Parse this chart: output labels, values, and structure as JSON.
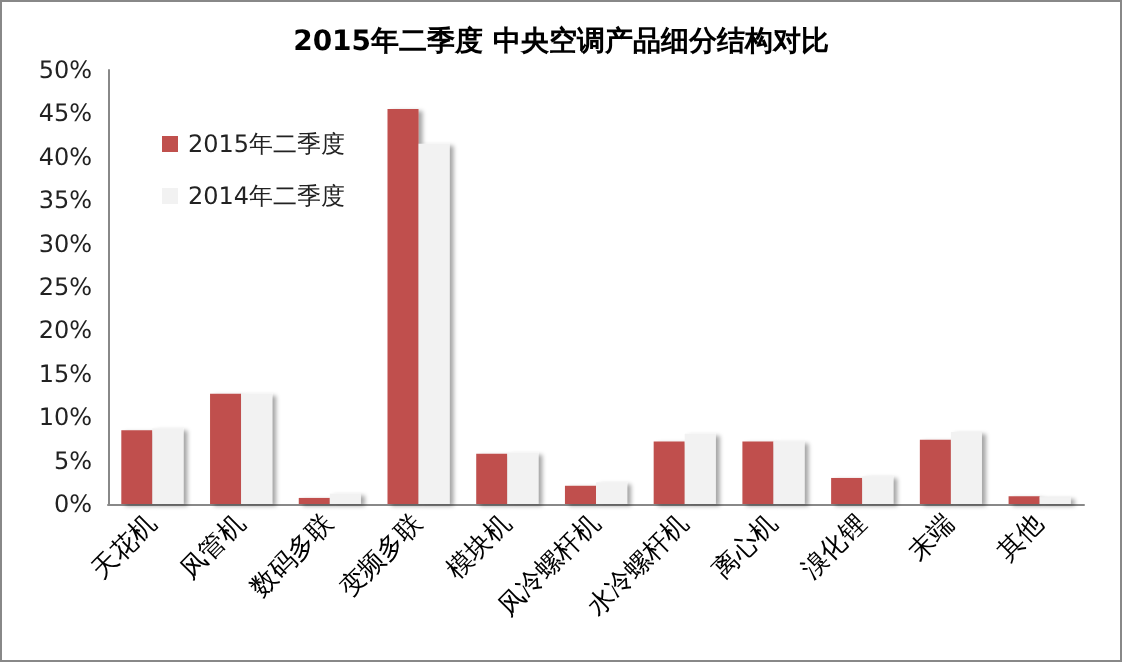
{
  "chart_data": {
    "type": "bar",
    "title": "2015年二季度 中央空调产品细分结构对比",
    "categories": [
      "天花机",
      "风管机",
      "数码多联",
      "变频多联",
      "模块机",
      "风冷螺杆机",
      "水冷螺杆机",
      "离心机",
      "溴化锂",
      "末端",
      "其他"
    ],
    "series": [
      {
        "name": "2015年二季度",
        "color": "#c0504d",
        "values": [
          8.5,
          12.7,
          0.7,
          45.5,
          5.8,
          2.1,
          7.2,
          7.2,
          3.0,
          7.4,
          0.9
        ]
      },
      {
        "name": "2014年二季度",
        "color": "#f2f2f2",
        "values": [
          8.7,
          12.7,
          1.2,
          41.5,
          5.9,
          2.5,
          8.1,
          7.2,
          3.2,
          8.3,
          0.8
        ]
      }
    ],
    "ylim": [
      0,
      50
    ],
    "yticks": [
      {
        "value": 0,
        "label": "0%"
      },
      {
        "value": 5,
        "label": "5%"
      },
      {
        "value": 10,
        "label": "10%"
      },
      {
        "value": 15,
        "label": "15%"
      },
      {
        "value": 20,
        "label": "20%"
      },
      {
        "value": 25,
        "label": "25%"
      },
      {
        "value": 30,
        "label": "30%"
      },
      {
        "value": 35,
        "label": "35%"
      },
      {
        "value": 40,
        "label": "40%"
      },
      {
        "value": 45,
        "label": "45%"
      },
      {
        "value": 50,
        "label": "50%"
      }
    ],
    "grid": false,
    "legend": "top left"
  }
}
